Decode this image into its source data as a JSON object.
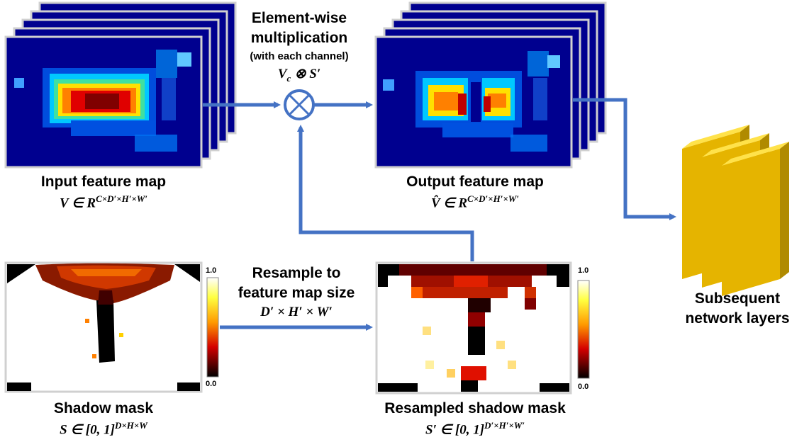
{
  "input_map": {
    "title": "Input feature map",
    "formula_main": "V ∈ R",
    "formula_sup": "C×D′×H′×W′"
  },
  "multiplication": {
    "line1": "Element-wise",
    "line2": "multiplication",
    "line3": "(with each channel)",
    "formula_v": "V",
    "formula_sub": "c",
    "formula_rest": "⊗ S′"
  },
  "output_map": {
    "title": "Output feature map",
    "formula_main": "V̂ ∈ R",
    "formula_sup": "C×D′×H′×W′"
  },
  "shadow_mask": {
    "title": "Shadow mask",
    "formula_main": "S ∈ [0, 1]",
    "formula_sup": "D×H×W",
    "colorbar_max": "1.0",
    "colorbar_min": "0.0"
  },
  "resample": {
    "line1": "Resample to",
    "line2": "feature map size",
    "formula": "D′ × H′ × W′"
  },
  "resampled_mask": {
    "title": "Resampled shadow mask",
    "formula_main": "S′ ∈ [0, 1]",
    "formula_sup": "D′×H′×W′",
    "colorbar_max": "1.0",
    "colorbar_min": "0.0"
  },
  "subsequent": {
    "line1": "Subsequent",
    "line2": "network layers"
  },
  "colors": {
    "arrow": "#4472C4",
    "heatmap_bg": "#00008F",
    "frame": "#D0D0D0",
    "layer_gold": "#F5C400"
  }
}
